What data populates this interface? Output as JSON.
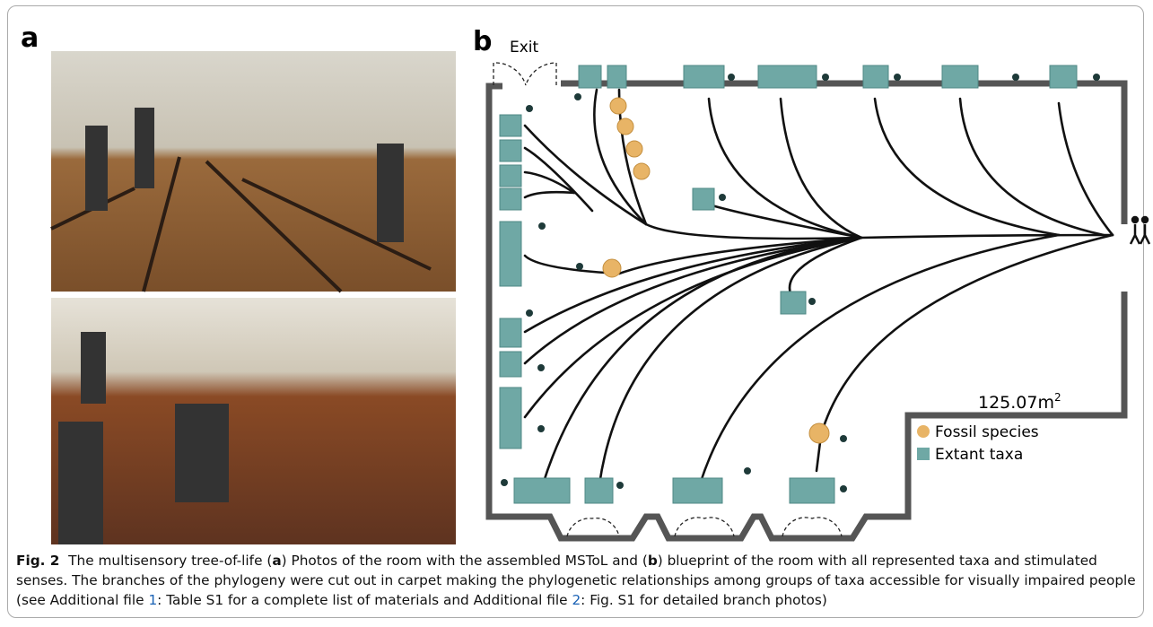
{
  "panels": {
    "a": "a",
    "b": "b"
  },
  "blueprint": {
    "exit": "Exit",
    "area": "125.07m",
    "area_sup": "2",
    "legend": [
      {
        "label": "Fossil species",
        "color": "#e8b466"
      },
      {
        "label": "Extant taxa",
        "color": "#6fa8a5"
      }
    ]
  },
  "caption": {
    "parts": [
      {
        "text": "Fig. 2",
        "style": "bold"
      },
      {
        "text": "  The multisensory tree-of-life (",
        "style": "plain"
      },
      {
        "text": "a",
        "style": "bold"
      },
      {
        "text": ") Photos of the room with the assembled MSToL and (",
        "style": "plain"
      },
      {
        "text": "b",
        "style": "bold"
      },
      {
        "text": ") blueprint of the room with all represented taxa and stimulated senses. The branches of the phylogeny were cut out in carpet making the phylogenetic relationships among groups of taxa accessible for visually impaired people (see Additional file ",
        "style": "plain"
      },
      {
        "text": "1",
        "style": "link"
      },
      {
        "text": ": Table S1 for a complete list of materials and Additional file ",
        "style": "plain"
      },
      {
        "text": "2",
        "style": "link"
      },
      {
        "text": ": Fig. S1 for detailed branch photos)",
        "style": "plain"
      }
    ]
  }
}
